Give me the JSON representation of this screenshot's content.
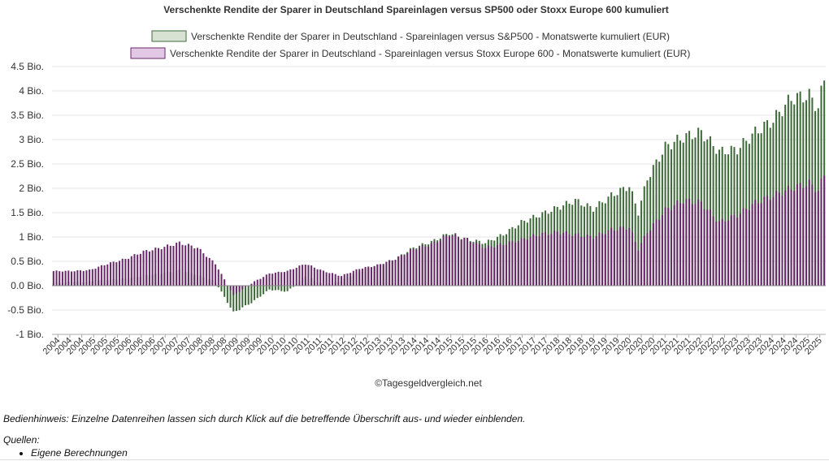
{
  "chart_data": {
    "type": "bar",
    "title": "Verschenkte Rendite der Sparer in Deutschland Spareinlagen versus SP500 oder Stoxx Europe 600 kumuliert",
    "yticks": [
      "4.5 Bio.",
      "4 Bio.",
      "3.5 Bio.",
      "3 Bio.",
      "2.5 Bio.",
      "2 Bio.",
      "1.5 Bio.",
      "1 Bio.",
      "0.5 Bio.",
      "0.0 Bio.",
      "-0.5 Bio.",
      "-1 Bio."
    ],
    "ylim": [
      -1,
      4.5
    ],
    "unit": "Bio. EUR",
    "x_years": [
      "2004",
      "2004",
      "2004",
      "2005",
      "2005",
      "2005",
      "2006",
      "2006",
      "2006",
      "2007",
      "2007",
      "2007",
      "2008",
      "2008",
      "2008",
      "2009",
      "2009",
      "2009",
      "2010",
      "2010",
      "2010",
      "2011",
      "2011",
      "2011",
      "2012",
      "2012",
      "2012",
      "2013",
      "2013",
      "2013",
      "2014",
      "2014",
      "2014",
      "2015",
      "2015",
      "2015",
      "2016",
      "2016",
      "2016",
      "2017",
      "2017",
      "2017",
      "2018",
      "2018",
      "2018",
      "2019",
      "2019",
      "2019",
      "2020",
      "2020",
      "2020",
      "2021",
      "2021",
      "2021",
      "2022",
      "2022",
      "2022",
      "2023",
      "2023",
      "2023",
      "2024",
      "2024",
      "2024",
      "2025",
      "2025"
    ],
    "series": [
      {
        "name": "Verschenkte Rendite der Sparer in Deutschland - Spareinlagen versus S&P500 - Monatswerte kumuliert (EUR)",
        "color": "#3f6b3a",
        "legend_fill": "#d7e2d3",
        "months": [
          "2004-01",
          "2004-07",
          "2005-01",
          "2005-07",
          "2006-01",
          "2006-07",
          "2007-01",
          "2007-07",
          "2008-01",
          "2008-07",
          "2009-01",
          "2009-07",
          "2010-01",
          "2010-07",
          "2011-01",
          "2011-07",
          "2012-01",
          "2012-07",
          "2013-01",
          "2013-07",
          "2014-01",
          "2014-07",
          "2015-01",
          "2015-07",
          "2016-01",
          "2016-07",
          "2017-01",
          "2017-07",
          "2018-01",
          "2018-07",
          "2019-01",
          "2019-07",
          "2020-01",
          "2020-04",
          "2020-07",
          "2021-01",
          "2021-07",
          "2022-01",
          "2022-07",
          "2023-01",
          "2023-07",
          "2024-01",
          "2024-07",
          "2025-01",
          "2025-04",
          "2025-06"
        ],
        "values": [
          0.05,
          0.08,
          0.08,
          0.12,
          0.14,
          0.2,
          0.25,
          0.32,
          0.22,
          0.08,
          -0.55,
          -0.35,
          -0.08,
          -0.12,
          0.2,
          0.02,
          0.1,
          0.3,
          0.42,
          0.55,
          0.78,
          0.9,
          1.08,
          0.95,
          0.88,
          1.05,
          1.3,
          1.45,
          1.6,
          1.75,
          1.58,
          1.85,
          2.05,
          1.5,
          2.2,
          2.85,
          3.05,
          3.15,
          2.75,
          2.8,
          3.15,
          3.4,
          3.85,
          3.9,
          3.65,
          4.25
        ]
      },
      {
        "name": "Verschenkte Rendite der Sparer in Deutschland - Spareinlagen versus Stoxx Europe 600 - Monatswerte kumuliert (EUR)",
        "color": "#6a2a6b",
        "legend_fill": "#e3c8e6",
        "months": [
          "2004-01",
          "2004-07",
          "2005-01",
          "2005-07",
          "2006-01",
          "2006-07",
          "2007-01",
          "2007-07",
          "2008-01",
          "2008-07",
          "2009-01",
          "2009-07",
          "2010-01",
          "2010-07",
          "2011-01",
          "2011-07",
          "2012-01",
          "2012-07",
          "2013-01",
          "2013-07",
          "2014-01",
          "2014-07",
          "2015-01",
          "2015-07",
          "2016-01",
          "2016-07",
          "2017-01",
          "2017-07",
          "2018-01",
          "2018-07",
          "2019-01",
          "2019-07",
          "2020-01",
          "2020-04",
          "2020-07",
          "2021-01",
          "2021-07",
          "2022-01",
          "2022-07",
          "2023-01",
          "2023-07",
          "2024-01",
          "2024-07",
          "2025-01",
          "2025-04",
          "2025-06"
        ],
        "values": [
          0.3,
          0.3,
          0.32,
          0.45,
          0.55,
          0.7,
          0.78,
          0.88,
          0.78,
          0.45,
          -0.2,
          0.05,
          0.25,
          0.3,
          0.45,
          0.3,
          0.2,
          0.35,
          0.42,
          0.55,
          0.75,
          0.85,
          1.05,
          0.95,
          0.78,
          0.85,
          0.95,
          1.05,
          1.1,
          1.05,
          1.0,
          1.15,
          1.2,
          0.75,
          1.1,
          1.55,
          1.75,
          1.7,
          1.3,
          1.45,
          1.7,
          1.85,
          2.0,
          2.1,
          1.95,
          2.28
        ]
      }
    ],
    "credit": "©Tagesgeldvergleich.net"
  },
  "hint": "Bedienhinweis: Einzelne Datenreihen lassen sich durch Klick auf die betreffende Überschrift aus- und wieder einblenden.",
  "sources": {
    "label": "Quellen:",
    "items": [
      "Eigene Berechnungen"
    ]
  }
}
